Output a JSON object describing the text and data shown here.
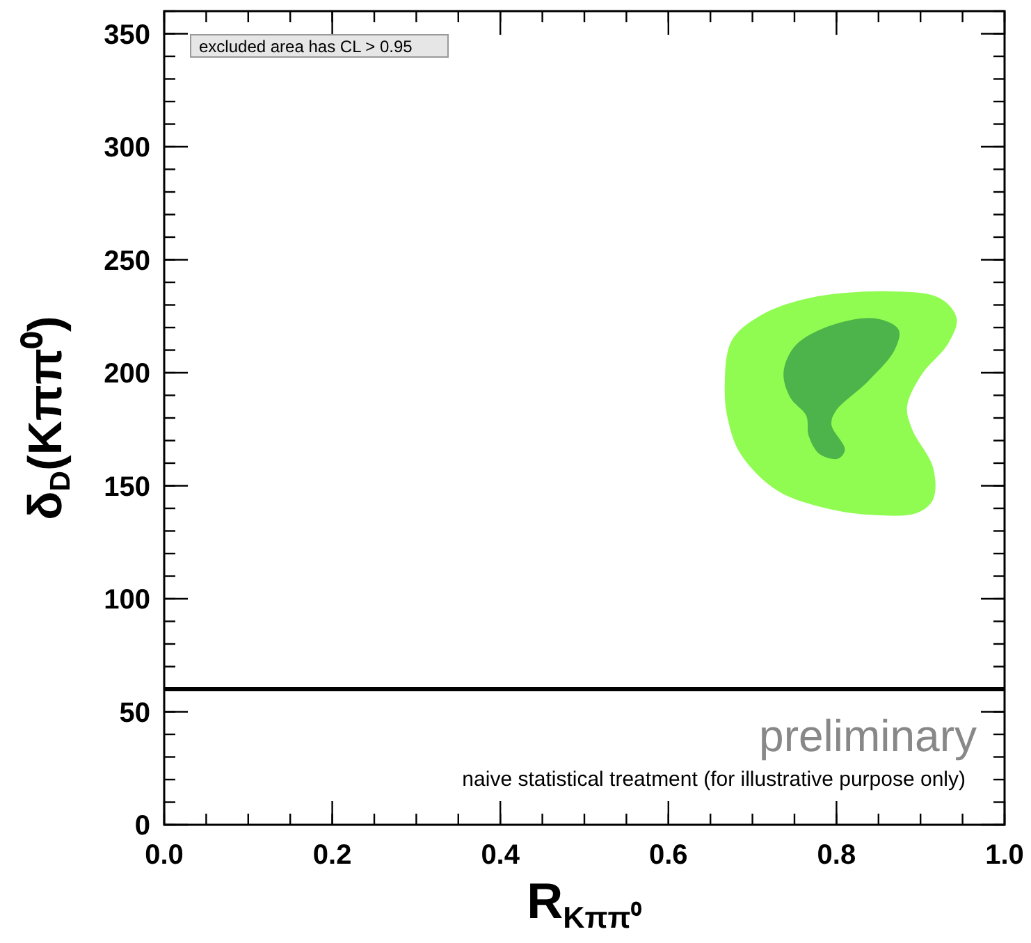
{
  "chart_data": {
    "type": "area",
    "xlabel": "R$_{Kππ⁰}$",
    "ylabel": "δ$_{D}$(Kππ⁰)",
    "xlim": [
      0,
      1
    ],
    "xticks": [
      {
        "value": 0,
        "label": "0.0"
      },
      0.2,
      0.4,
      0.6,
      0.8,
      {
        "value": 1,
        "label": "1.0"
      }
    ],
    "ylim": [
      0,
      360
    ],
    "yticks": [
      0,
      50,
      100,
      150,
      200,
      250,
      300,
      350
    ],
    "grid": false,
    "series": [
      {
        "color": "#90fc52",
        "x": [
          0.667,
          0.675,
          0.708,
          0.767,
          0.863,
          0.923,
          0.943,
          0.933,
          0.901,
          0.884,
          0.89,
          0.915,
          0.915,
          0.896,
          0.847,
          0.788,
          0.729,
          0.686,
          0.671
        ],
        "values": [
          193,
          214,
          225,
          233,
          236,
          233,
          224,
          213,
          199,
          185,
          175,
          158,
          144,
          138,
          137,
          140,
          148,
          164,
          179
        ]
      },
      {
        "color": "#4cb44a",
        "x": [
          0.737,
          0.751,
          0.794,
          0.847,
          0.874,
          0.869,
          0.837,
          0.799,
          0.794,
          0.81,
          0.802,
          0.78,
          0.767,
          0.764,
          0.745
        ],
        "values": [
          200,
          212,
          221,
          224,
          219,
          210,
          196,
          183,
          177,
          166,
          162,
          164,
          172,
          181,
          189
        ]
      }
    ],
    "ref_lines": [
      {
        "axis": "y",
        "value": 60,
        "color": "#000000"
      }
    ],
    "annotations": [
      "excluded area has CL > 0.95",
      "preliminary",
      "naive statistical treatment (for illustrative purpose only)"
    ]
  }
}
